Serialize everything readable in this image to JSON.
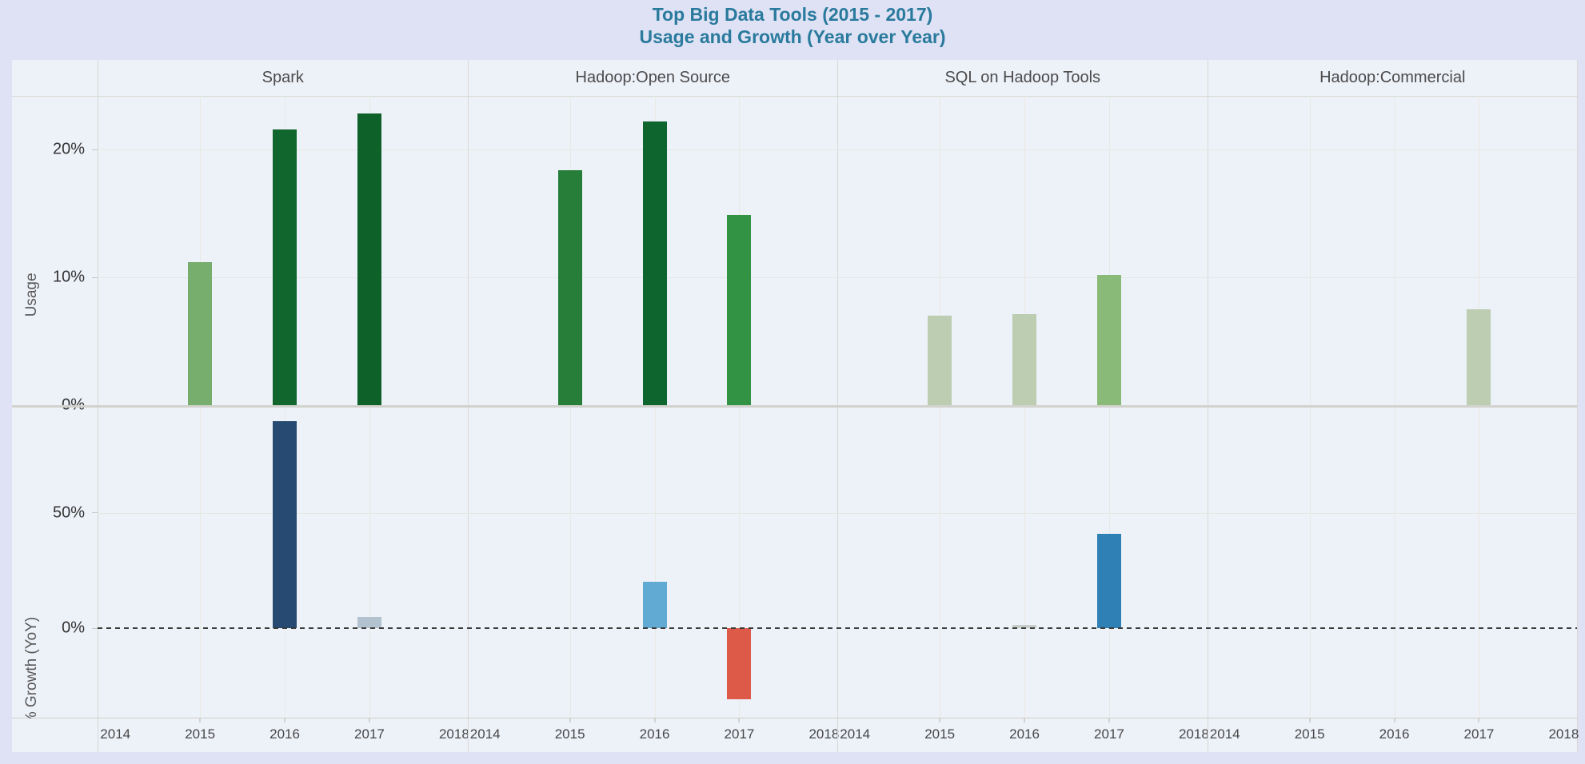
{
  "title": {
    "line1": "Top Big Data Tools (2015 - 2017)",
    "line2": "Usage and Growth (Year over Year)"
  },
  "colors": {
    "page_background": "#dee2f4",
    "plot_background": "#edf1f8",
    "title_text": "#2a7a9d",
    "header_text": "#4b4b4b",
    "gridline": "#e7e6e1",
    "panel_divider": "#d9d8d4",
    "zero_line": "#3c3c3c"
  },
  "chart_data": {
    "type": "bar",
    "title": "Top Big Data Tools (2015 - 2017) — Usage and Growth (Year over Year)",
    "panels": [
      "Spark",
      "Hadoop:Open Source",
      "SQL on Hadoop Tools",
      "Hadoop:Commercial"
    ],
    "x_ticks": [
      "2014",
      "2015",
      "2016",
      "2017",
      "2018"
    ],
    "x_range": [
      2014,
      2018
    ],
    "grid": true,
    "rows": [
      {
        "name": "usage",
        "ylabel": "Usage",
        "unit": "%",
        "ylim": [
          0,
          24.2
        ],
        "yticks": [
          {
            "value": 0,
            "label": "0%"
          },
          {
            "value": 10,
            "label": "10%"
          },
          {
            "value": 20,
            "label": "20%"
          }
        ],
        "zero_line_dashed": false,
        "series": [
          {
            "panel": "Spark",
            "points": [
              {
                "year": 2015,
                "value": 11.2,
                "color": "#77ae6e"
              },
              {
                "year": 2016,
                "value": 21.6,
                "color": "#11662d"
              },
              {
                "year": 2017,
                "value": 22.8,
                "color": "#0e6229"
              }
            ]
          },
          {
            "panel": "Hadoop:Open Source",
            "points": [
              {
                "year": 2015,
                "value": 18.4,
                "color": "#277e39"
              },
              {
                "year": 2016,
                "value": 22.2,
                "color": "#0e662e"
              },
              {
                "year": 2017,
                "value": 14.9,
                "color": "#339345"
              }
            ]
          },
          {
            "panel": "SQL on Hadoop Tools",
            "points": [
              {
                "year": 2015,
                "value": 7.0,
                "color": "#bccdb1"
              },
              {
                "year": 2016,
                "value": 7.1,
                "color": "#bccdb1"
              },
              {
                "year": 2017,
                "value": 10.2,
                "color": "#8aba77"
              }
            ]
          },
          {
            "panel": "Hadoop:Commercial",
            "points": [
              {
                "year": 2017,
                "value": 7.5,
                "color": "#bccdb1"
              }
            ]
          }
        ]
      },
      {
        "name": "growth",
        "ylabel": "% Growth (YoY)",
        "unit": "%",
        "ylim": [
          -39.2,
          95.8
        ],
        "yticks": [
          {
            "value": 0,
            "label": "0%"
          },
          {
            "value": 50,
            "label": "50%"
          }
        ],
        "zero_line_dashed": true,
        "series": [
          {
            "panel": "Spark",
            "points": [
              {
                "year": 2016,
                "value": 90,
                "color": "#274a72"
              },
              {
                "year": 2017,
                "value": 5,
                "color": "#b2c3cf"
              }
            ]
          },
          {
            "panel": "Hadoop:Open Source",
            "points": [
              {
                "year": 2016,
                "value": 20,
                "color": "#60aad3"
              },
              {
                "year": 2017,
                "value": -31,
                "color": "#dd5a49"
              }
            ]
          },
          {
            "panel": "SQL on Hadoop Tools",
            "points": [
              {
                "year": 2016,
                "value": 1.5,
                "color": "#c9cdc9"
              },
              {
                "year": 2017,
                "value": 41,
                "color": "#2f80b5"
              }
            ]
          },
          {
            "panel": "Hadoop:Commercial",
            "points": []
          }
        ]
      }
    ]
  }
}
